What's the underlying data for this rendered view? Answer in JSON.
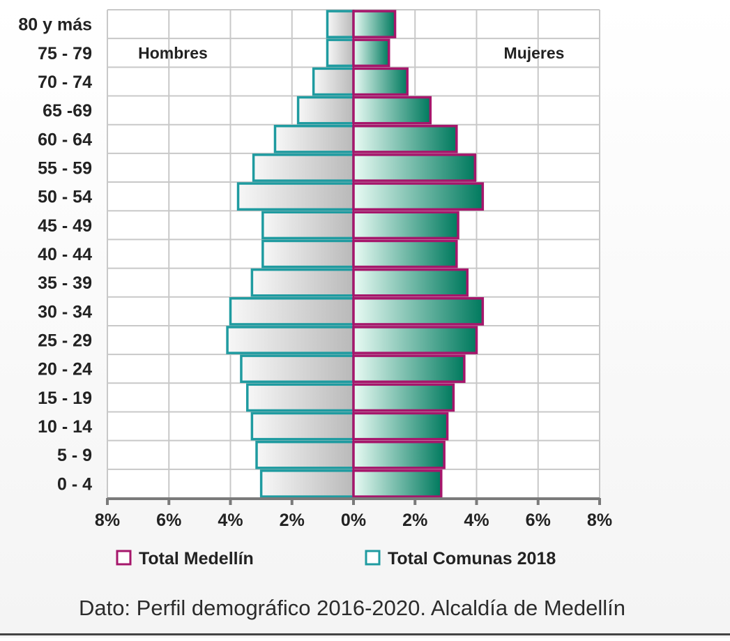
{
  "chart_data": {
    "type": "bar",
    "orientation": "horizontal",
    "layout": "population-pyramid",
    "categories": [
      "80 y más",
      "75 - 79",
      "70 - 74",
      "65 -69",
      "60 - 64",
      "55 - 59",
      "50 - 54",
      "45 - 49",
      "40 - 44",
      "35 - 39",
      "30 - 34",
      "25 - 29",
      "20 - 24",
      "15 - 19",
      "10 - 14",
      "5 - 9",
      "0 - 4"
    ],
    "left_label": "Hombres",
    "right_label": "Mujeres",
    "series": [
      {
        "name": "Total Comunas 2018",
        "side": "Hombres",
        "values": [
          0.85,
          0.85,
          1.3,
          1.8,
          2.55,
          3.25,
          3.75,
          2.95,
          2.95,
          3.3,
          4.0,
          4.1,
          3.65,
          3.45,
          3.3,
          3.15,
          3.0
        ]
      },
      {
        "name": "Total Medellín",
        "side": "Mujeres",
        "values": [
          1.35,
          1.15,
          1.75,
          2.5,
          3.35,
          3.95,
          4.2,
          3.4,
          3.35,
          3.7,
          4.2,
          4.0,
          3.6,
          3.25,
          3.05,
          2.95,
          2.85
        ]
      }
    ],
    "xticks": [
      "8%",
      "6%",
      "4%",
      "2%",
      "0%",
      "2%",
      "4%",
      "6%",
      "8%"
    ],
    "xlim": [
      -8,
      8
    ],
    "grid": true,
    "legend": [
      {
        "label": "Total Medellín",
        "color": "#a6166b"
      },
      {
        "label": "Total Comunas 2018",
        "color": "#1f9ba0"
      }
    ],
    "legend_position": "bottom",
    "colors": {
      "men_fill_dark": "#b9b9b9",
      "men_fill_light": "#f7f7f7",
      "women_fill_dark": "#007a5e",
      "women_fill_light": "#e9fbf4",
      "outline_comunas": "#1f9ba0",
      "outline_medellin": "#a6166b",
      "grid": "#c8c8c8",
      "axis": "#7a7a7a"
    },
    "source_note": "Dato: Perfil demográfico 2016-2020. Alcaldía de Medellín"
  }
}
